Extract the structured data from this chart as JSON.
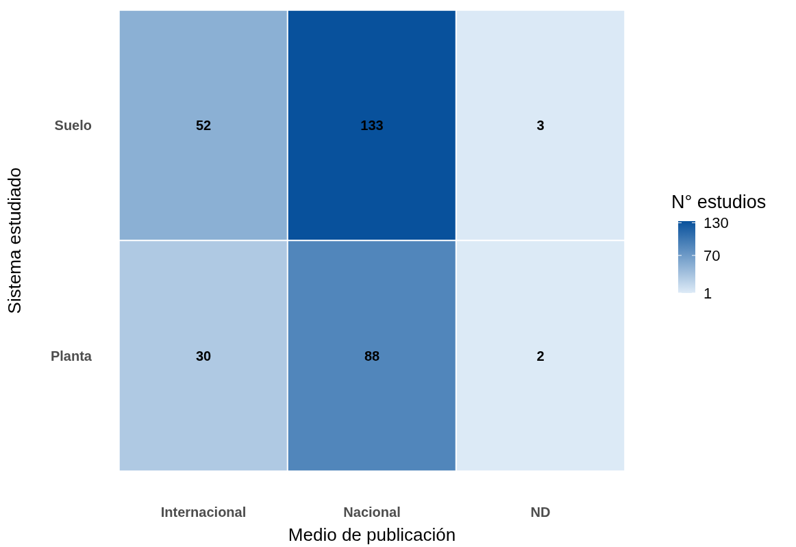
{
  "chart_data": {
    "type": "heatmap",
    "xlabel": "Medio de publicación",
    "ylabel": "Sistema estudiado",
    "clabel": "N° estudios",
    "categories": [
      "Internacional",
      "Nacional",
      "ND"
    ],
    "y_categories": [
      "Suelo",
      "Planta"
    ],
    "cells": [
      [
        52,
        133,
        3
      ],
      [
        30,
        88,
        2
      ]
    ],
    "data_labels": true,
    "clim": [
      1,
      133
    ],
    "cticks": [
      1,
      70,
      130
    ]
  }
}
